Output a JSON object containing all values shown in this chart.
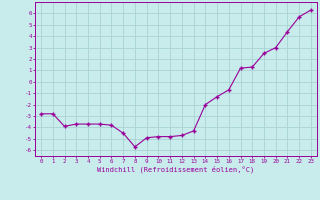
{
  "x": [
    0,
    1,
    2,
    3,
    4,
    5,
    6,
    7,
    8,
    9,
    10,
    11,
    12,
    13,
    14,
    15,
    16,
    17,
    18,
    19,
    20,
    21,
    22,
    23
  ],
  "y": [
    -2.8,
    -2.8,
    -3.9,
    -3.7,
    -3.7,
    -3.7,
    -3.8,
    -4.5,
    -5.7,
    -4.9,
    -4.8,
    -4.8,
    -4.7,
    -4.3,
    -2.0,
    -1.3,
    -0.7,
    1.2,
    1.3,
    2.5,
    3.0,
    4.4,
    5.7,
    6.3
  ],
  "xlabel": "Windchill (Refroidissement éolien,°C)",
  "ylabel_ticks": [
    6,
    5,
    4,
    3,
    2,
    1,
    0,
    -1,
    -2,
    -3,
    -4,
    -5,
    -6
  ],
  "ylim": [
    -6.5,
    7.0
  ],
  "xlim": [
    -0.5,
    23.5
  ],
  "line_color": "#990099",
  "marker": "+",
  "bg_color": "#c8ecec",
  "grid_color": "#a8d4d4",
  "label_fontsize": 4.2,
  "xlabel_fontsize": 5.0
}
